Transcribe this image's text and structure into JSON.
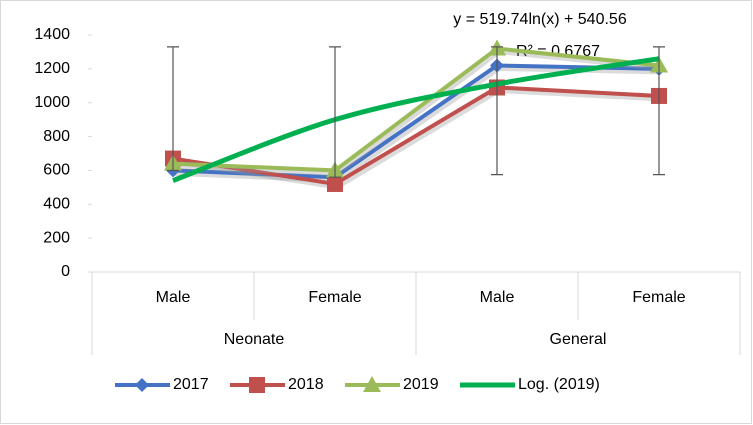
{
  "chart_data": {
    "type": "line",
    "groups": [
      {
        "name": "Neonate",
        "categories": [
          "Male",
          "Female"
        ]
      },
      {
        "name": "General",
        "categories": [
          "Male",
          "Female"
        ]
      }
    ],
    "series": [
      {
        "name": "2017",
        "color": "#4472c4",
        "marker": "diamond",
        "values": [
          600,
          560,
          1220,
          1200
        ],
        "error_plus": [
          730,
          770,
          110,
          130
        ],
        "error_minus": [
          0,
          0,
          645,
          625
        ]
      },
      {
        "name": "2018",
        "color": "#c0504d",
        "marker": "square",
        "values": [
          670,
          520,
          1090,
          1040
        ]
      },
      {
        "name": "2019",
        "color": "#9bbb59",
        "marker": "triangle",
        "values": [
          640,
          600,
          1320,
          1220
        ]
      },
      {
        "name": "Log. (2019)",
        "color": "#00b050",
        "trendline": true,
        "values": [
          540,
          900,
          1110,
          1260
        ]
      }
    ],
    "annotations": [
      "y = 519.74ln(x) + 540.56",
      "R² = 0.6767"
    ],
    "ylim": [
      0,
      1400
    ],
    "yticks": [
      0,
      200,
      400,
      600,
      800,
      1000,
      1200,
      1400
    ],
    "grid": false,
    "legend": "bottom"
  }
}
